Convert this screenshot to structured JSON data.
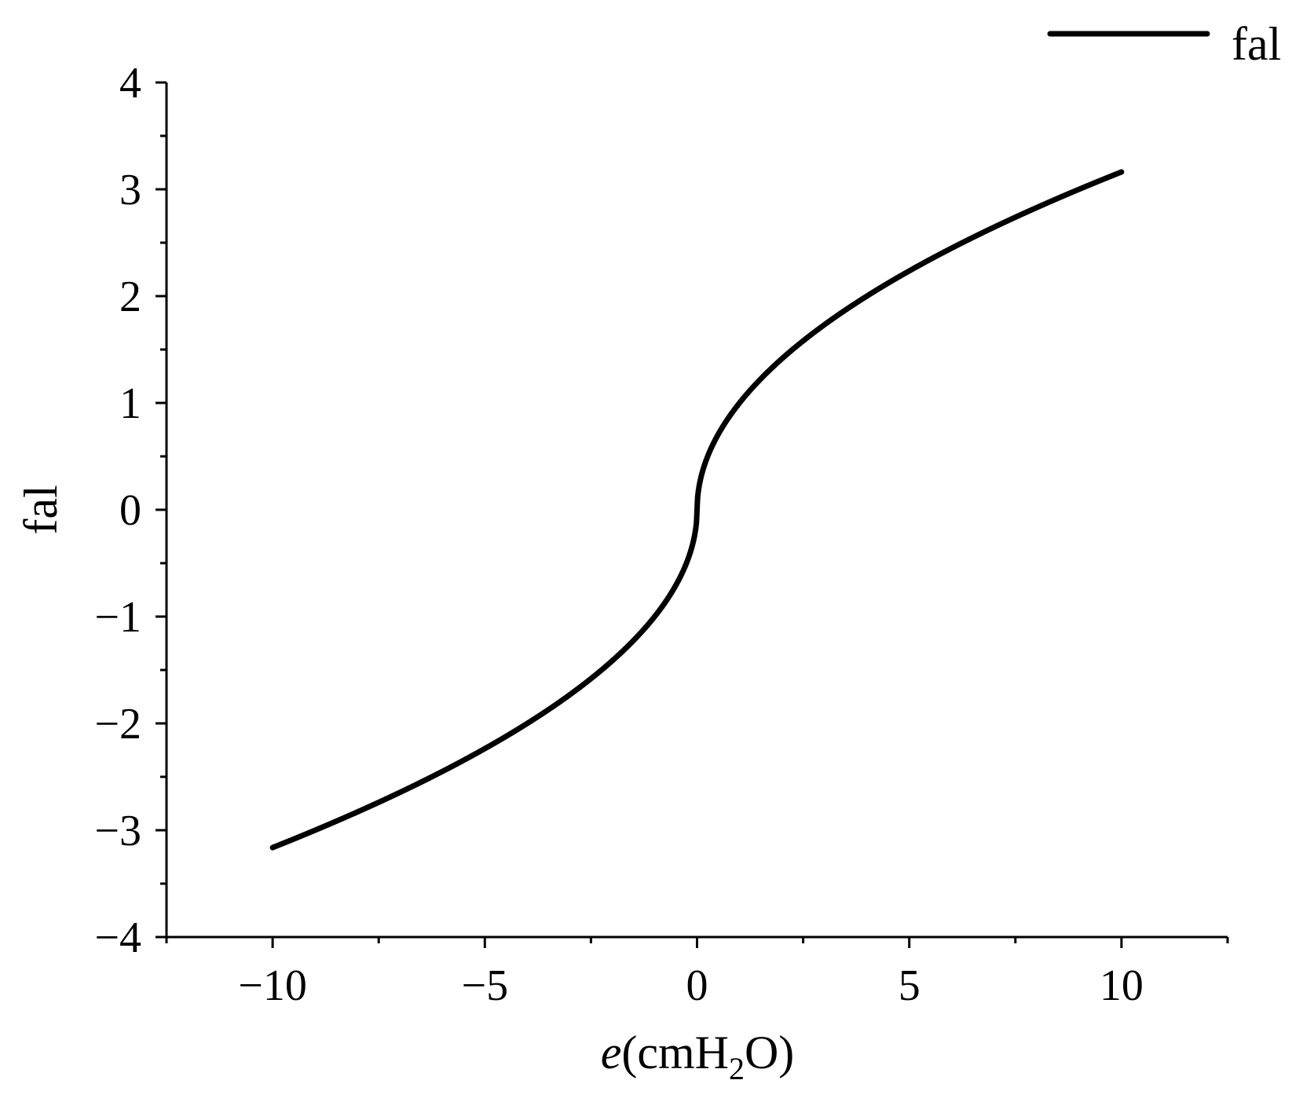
{
  "chart_data": {
    "type": "line",
    "xlabel": {
      "main": "e",
      "paren_open": "(cmH",
      "subscript": "2",
      "paren_close": "O)"
    },
    "ylabel": "fal",
    "xlim": [
      -12.5,
      12.5
    ],
    "ylim": [
      -4,
      4
    ],
    "x_ticks": [
      -10,
      -5,
      0,
      5,
      10
    ],
    "x_tick_labels": [
      "−10",
      "−5",
      "0",
      "5",
      "10"
    ],
    "y_ticks": [
      -4,
      -3,
      -2,
      -1,
      0,
      1,
      2,
      3,
      4
    ],
    "y_tick_labels": [
      "−4",
      "−3",
      "−2",
      "−1",
      "0",
      "1",
      "2",
      "3",
      "4"
    ],
    "grid": false,
    "legend_position": "top-right",
    "series": [
      {
        "name": "fal",
        "color": "#000000",
        "function": {
          "kind": "fal",
          "alpha": 0.5,
          "delta": 0.01
        },
        "x_range": [
          -10,
          10
        ]
      }
    ]
  }
}
